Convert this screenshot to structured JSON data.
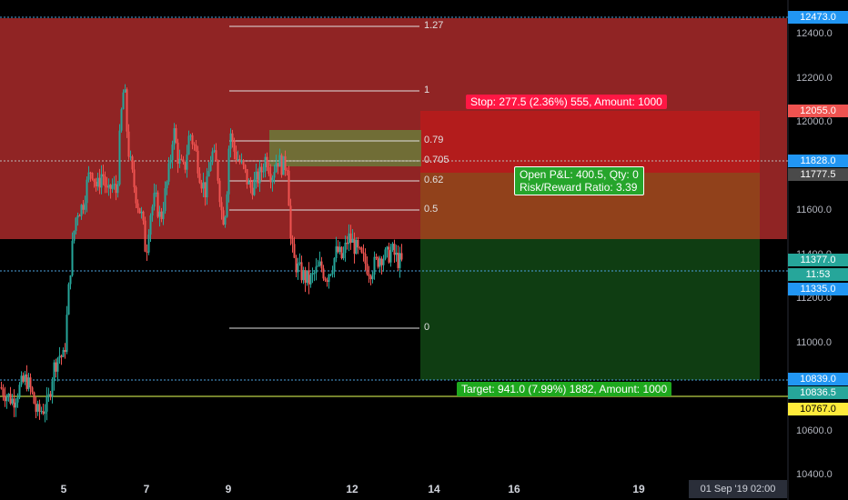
{
  "colors": {
    "bull": "#26a69a",
    "bear": "#ef5350",
    "stop_zone": "#b71c1c",
    "target_zone": "#0f3d12",
    "fib_line": "#e0e0e0",
    "target_line": "#9bad3b"
  },
  "chart_data": {
    "type": "candlestick",
    "ylim": [
      10400,
      12540
    ],
    "y_ticks": [
      "10400.0",
      "10600.0",
      "11000.0",
      "11200.0",
      "11400.0",
      "11600.0",
      "12000.0",
      "12200.0",
      "12400.0"
    ],
    "x_ticks": [
      "5",
      "7",
      "9",
      "12",
      "14",
      "16",
      "19"
    ],
    "price_series": [
      [
        0,
        10800
      ],
      [
        8,
        10760
      ],
      [
        14,
        10740
      ],
      [
        20,
        10790
      ],
      [
        28,
        10840
      ],
      [
        34,
        10780
      ],
      [
        40,
        10680
      ],
      [
        46,
        10700
      ],
      [
        52,
        10720
      ],
      [
        58,
        10880
      ],
      [
        64,
        10950
      ],
      [
        70,
        10930
      ],
      [
        76,
        11300
      ],
      [
        80,
        11480
      ],
      [
        84,
        11600
      ],
      [
        90,
        11620
      ],
      [
        96,
        11740
      ],
      [
        100,
        11800
      ],
      [
        106,
        11700
      ],
      [
        112,
        11780
      ],
      [
        118,
        11660
      ],
      [
        122,
        11720
      ],
      [
        128,
        11680
      ],
      [
        132,
        12000
      ],
      [
        136,
        12180
      ],
      [
        140,
        11900
      ],
      [
        144,
        11780
      ],
      [
        150,
        11650
      ],
      [
        156,
        11560
      ],
      [
        160,
        11400
      ],
      [
        164,
        11580
      ],
      [
        170,
        11660
      ],
      [
        176,
        11560
      ],
      [
        182,
        11700
      ],
      [
        186,
        11800
      ],
      [
        190,
        11980
      ],
      [
        196,
        11820
      ],
      [
        202,
        11780
      ],
      [
        208,
        11960
      ],
      [
        214,
        11880
      ],
      [
        220,
        11750
      ],
      [
        226,
        11680
      ],
      [
        232,
        11870
      ],
      [
        238,
        11800
      ],
      [
        244,
        11560
      ],
      [
        248,
        11620
      ],
      [
        252,
        11980
      ],
      [
        256,
        11880
      ],
      [
        262,
        11830
      ],
      [
        268,
        11780
      ],
      [
        274,
        11700
      ],
      [
        280,
        11730
      ],
      [
        286,
        11770
      ],
      [
        292,
        11850
      ],
      [
        298,
        11760
      ],
      [
        304,
        11840
      ],
      [
        310,
        11800
      ],
      [
        316,
        11820
      ],
      [
        318,
        11500
      ],
      [
        322,
        11380
      ],
      [
        328,
        11330
      ],
      [
        334,
        11300
      ],
      [
        340,
        11280
      ],
      [
        346,
        11320
      ],
      [
        352,
        11350
      ],
      [
        358,
        11300
      ],
      [
        364,
        11350
      ],
      [
        370,
        11420
      ],
      [
        376,
        11380
      ],
      [
        382,
        11480
      ],
      [
        388,
        11450
      ],
      [
        394,
        11400
      ],
      [
        400,
        11370
      ],
      [
        406,
        11330
      ],
      [
        412,
        11360
      ],
      [
        418,
        11400
      ],
      [
        424,
        11390
      ],
      [
        430,
        11420
      ],
      [
        436,
        11380
      ],
      [
        442,
        11360
      ]
    ],
    "fib_levels": [
      "1.27",
      "1",
      "0.79",
      "0.705",
      "0.62",
      "0.5",
      "0"
    ],
    "price_labels": [
      {
        "text": "12473.0",
        "bg": "#2196f3"
      },
      {
        "text": "12055.0",
        "bg": "#ef5350"
      },
      {
        "text": "11828.0",
        "bg": "#2196f3"
      },
      {
        "text": "11777.5",
        "bg": "#4a4a4a"
      },
      {
        "text": "11377.0",
        "bg": "#26a69a"
      },
      {
        "text": "11:53",
        "bg": "#26a69a"
      },
      {
        "text": "11335.0",
        "bg": "#2196f3"
      },
      {
        "text": "10839.0",
        "bg": "#2196f3"
      },
      {
        "text": "10836.5",
        "bg": "#26a69a"
      },
      {
        "text": "10767.0",
        "bg": "#ffeb3b",
        "fg": "#000"
      }
    ],
    "stop_label": "Stop: 277.5 (2.36%) 555, Amount: 1000",
    "pnl_line1": "Open P&L: 400.5, Qty: 0",
    "pnl_line2": "Risk/Reward Ratio: 3.39",
    "target_label": "Target: 941.0 (7.99%) 1882, Amount: 1000",
    "date_box": "01 Sep '19   02:00"
  }
}
